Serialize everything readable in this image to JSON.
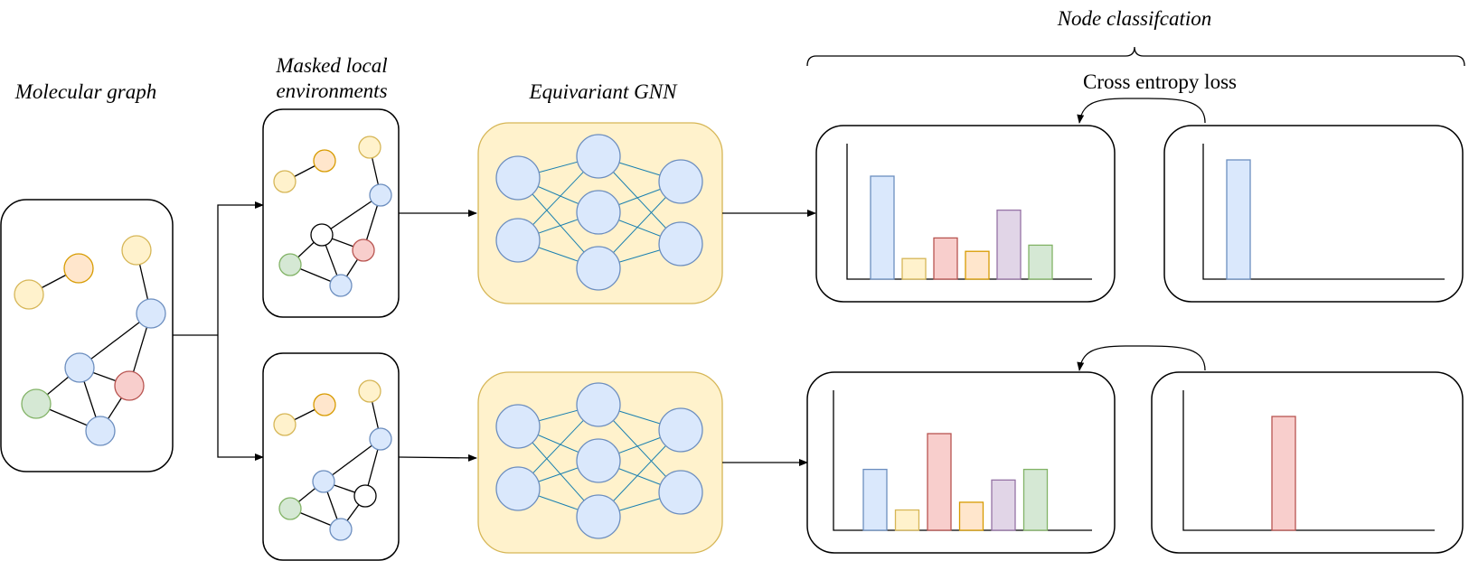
{
  "labels": {
    "molecular_graph": "Molecular graph",
    "masked_line1": "Masked local",
    "masked_line2": "environments",
    "gnn": "Equivariant GNN",
    "node_classification": "Node classifcation",
    "loss": "Cross entropy loss"
  },
  "colors": {
    "yellow": "#fff2cc",
    "yellow_stroke": "#d6b656",
    "orange": "#ffe6cc",
    "orange_stroke": "#d79b00",
    "blue": "#dae8fc",
    "blue_stroke": "#6c8ebf",
    "red": "#f8cecc",
    "red_stroke": "#b85450",
    "green": "#d5e8d4",
    "green_stroke": "#82b366",
    "purple": "#e1d5e7",
    "purple_stroke": "#9673a6",
    "white": "#ffffff",
    "white_stroke": "#000000"
  },
  "chart_data": [
    {
      "type": "bar",
      "name": "prediction-top",
      "bar_colors": [
        "blue",
        "yellow",
        "red",
        "orange",
        "purple",
        "green"
      ],
      "values": [
        1.0,
        0.2,
        0.4,
        0.27,
        0.67,
        0.33
      ]
    },
    {
      "type": "bar",
      "name": "target-top",
      "bar_colors": [
        "blue",
        "yellow",
        "red",
        "orange",
        "purple",
        "green"
      ],
      "values": [
        1.0,
        0,
        0,
        0,
        0,
        0
      ]
    },
    {
      "type": "bar",
      "name": "prediction-bottom",
      "bar_colors": [
        "blue",
        "yellow",
        "red",
        "orange",
        "purple",
        "green"
      ],
      "values": [
        0.63,
        0.21,
        1.0,
        0.29,
        0.52,
        0.63
      ]
    },
    {
      "type": "bar",
      "name": "target-bottom",
      "bar_colors": [
        "blue",
        "yellow",
        "red",
        "orange",
        "purple",
        "green"
      ],
      "values": [
        0,
        0,
        1.0,
        0,
        0,
        0
      ]
    }
  ]
}
